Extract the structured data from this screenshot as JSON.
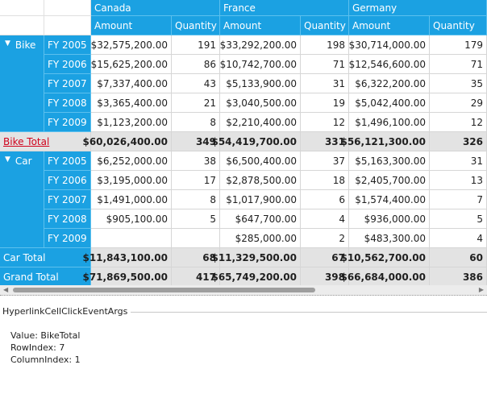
{
  "countries": [
    "Canada",
    "France",
    "Germany"
  ],
  "measures": {
    "amount": "Amount",
    "quantity": "Quantity"
  },
  "groups": [
    {
      "name": "Bike",
      "rows": [
        {
          "year": "FY 2005",
          "values": [
            "$32,575,200.00",
            "191",
            "$33,292,200.00",
            "198",
            "$30,714,000.00",
            "179"
          ]
        },
        {
          "year": "FY 2006",
          "values": [
            "$15,625,200.00",
            "86",
            "$10,742,700.00",
            "71",
            "$12,546,600.00",
            "71"
          ]
        },
        {
          "year": "FY 2007",
          "values": [
            "$7,337,400.00",
            "43",
            "$5,133,900.00",
            "31",
            "$6,322,200.00",
            "35"
          ]
        },
        {
          "year": "FY 2008",
          "values": [
            "$3,365,400.00",
            "21",
            "$3,040,500.00",
            "19",
            "$5,042,400.00",
            "29"
          ]
        },
        {
          "year": "FY 2009",
          "values": [
            "$1,123,200.00",
            "8",
            "$2,210,400.00",
            "12",
            "$1,496,100.00",
            "12"
          ]
        }
      ],
      "total_label": "Bike Total",
      "total_values": [
        "$60,026,400.00",
        "349",
        "$54,419,700.00",
        "331",
        "$56,121,300.00",
        "326"
      ]
    },
    {
      "name": "Car",
      "rows": [
        {
          "year": "FY 2005",
          "values": [
            "$6,252,000.00",
            "38",
            "$6,500,400.00",
            "37",
            "$5,163,300.00",
            "31"
          ]
        },
        {
          "year": "FY 2006",
          "values": [
            "$3,195,000.00",
            "17",
            "$2,878,500.00",
            "18",
            "$2,405,700.00",
            "13"
          ]
        },
        {
          "year": "FY 2007",
          "values": [
            "$1,491,000.00",
            "8",
            "$1,017,900.00",
            "6",
            "$1,574,400.00",
            "7"
          ]
        },
        {
          "year": "FY 2008",
          "values": [
            "$905,100.00",
            "5",
            "$647,700.00",
            "4",
            "$936,000.00",
            "5"
          ]
        },
        {
          "year": "FY 2009",
          "values": [
            "",
            "",
            "$285,000.00",
            "2",
            "$483,300.00",
            "4"
          ]
        }
      ],
      "total_label": "Car Total",
      "total_values": [
        "$11,843,100.00",
        "68",
        "$11,329,500.00",
        "67",
        "$10,562,700.00",
        "60"
      ]
    }
  ],
  "grand_total": {
    "label": "Grand Total",
    "values": [
      "$71,869,500.00",
      "417",
      "$65,749,200.00",
      "398",
      "$66,684,000.00",
      "386"
    ]
  },
  "event_panel": {
    "title": "HyperlinkCellClickEventArgs",
    "value_line": "Value: BikeTotal",
    "row_line": "RowIndex: 7",
    "col_line": "ColumnIndex: 1"
  },
  "colors": {
    "header": "#1ba1e2",
    "total_row": "#e3e3e3",
    "hyperlink": "#d0021b"
  },
  "icons": {
    "expand": "triangle-down-icon",
    "scroll_left": "arrow-left-icon",
    "scroll_right": "arrow-right-icon"
  }
}
